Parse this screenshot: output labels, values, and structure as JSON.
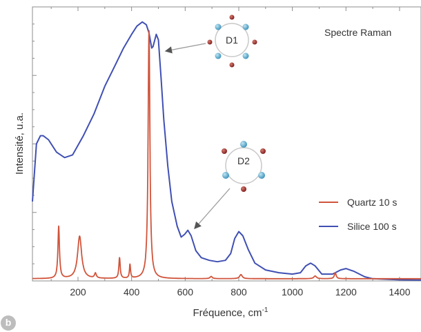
{
  "chart_data": {
    "type": "line",
    "title": "Spectre Raman",
    "xlabel": "Fréquence, cm",
    "xlabel_superscript": "-1",
    "ylabel": "Intensité, u.a.",
    "xlim": [
      30,
      1480
    ],
    "ylim": [
      0,
      1
    ],
    "x_ticks": [
      200,
      400,
      600,
      800,
      1000,
      1200,
      1400
    ],
    "x_tick_labels": [
      "200",
      "400",
      "600",
      "800",
      "1000",
      "1200",
      "1400"
    ],
    "y_ticks_shown": false,
    "grid": false,
    "legend_position": "right",
    "series": [
      {
        "name": "Quartz 10 s",
        "color": "#d0533a",
        "baseline": 0.008,
        "peaks": [
          {
            "x": 128,
            "height": 0.19,
            "width": 3.5
          },
          {
            "x": 206,
            "height": 0.155,
            "width": 9
          },
          {
            "x": 265,
            "height": 0.018,
            "width": 4
          },
          {
            "x": 355,
            "height": 0.075,
            "width": 3
          },
          {
            "x": 394,
            "height": 0.05,
            "width": 2.5
          },
          {
            "x": 465,
            "height": 0.905,
            "width": 4
          },
          {
            "x": 697,
            "height": 0.008,
            "width": 5
          },
          {
            "x": 808,
            "height": 0.015,
            "width": 6
          },
          {
            "x": 1085,
            "height": 0.01,
            "width": 6
          },
          {
            "x": 1160,
            "height": 0.022,
            "width": 4
          }
        ]
      },
      {
        "name": "Silice 100 s",
        "color": "#3f4fb3",
        "points": [
          [
            30,
            0.29
          ],
          [
            45,
            0.5
          ],
          [
            60,
            0.53
          ],
          [
            70,
            0.53
          ],
          [
            90,
            0.515
          ],
          [
            120,
            0.47
          ],
          [
            150,
            0.45
          ],
          [
            180,
            0.46
          ],
          [
            220,
            0.53
          ],
          [
            260,
            0.61
          ],
          [
            300,
            0.71
          ],
          [
            340,
            0.79
          ],
          [
            370,
            0.85
          ],
          [
            400,
            0.9
          ],
          [
            420,
            0.93
          ],
          [
            440,
            0.945
          ],
          [
            455,
            0.935
          ],
          [
            465,
            0.905
          ],
          [
            475,
            0.85
          ],
          [
            480,
            0.855
          ],
          [
            492,
            0.9
          ],
          [
            500,
            0.88
          ],
          [
            510,
            0.74
          ],
          [
            520,
            0.59
          ],
          [
            535,
            0.42
          ],
          [
            550,
            0.29
          ],
          [
            570,
            0.2
          ],
          [
            585,
            0.16
          ],
          [
            598,
            0.17
          ],
          [
            610,
            0.185
          ],
          [
            622,
            0.165
          ],
          [
            640,
            0.11
          ],
          [
            660,
            0.085
          ],
          [
            690,
            0.075
          ],
          [
            720,
            0.07
          ],
          [
            750,
            0.075
          ],
          [
            770,
            0.1
          ],
          [
            785,
            0.155
          ],
          [
            800,
            0.18
          ],
          [
            815,
            0.165
          ],
          [
            835,
            0.115
          ],
          [
            860,
            0.065
          ],
          [
            900,
            0.04
          ],
          [
            950,
            0.03
          ],
          [
            1000,
            0.025
          ],
          [
            1030,
            0.03
          ],
          [
            1050,
            0.055
          ],
          [
            1068,
            0.065
          ],
          [
            1085,
            0.055
          ],
          [
            1110,
            0.025
          ],
          [
            1150,
            0.025
          ],
          [
            1180,
            0.04
          ],
          [
            1200,
            0.045
          ],
          [
            1230,
            0.035
          ],
          [
            1270,
            0.015
          ],
          [
            1300,
            0.008
          ],
          [
            1400,
            0.004
          ],
          [
            1480,
            0.003
          ]
        ]
      }
    ],
    "annotations": [
      {
        "text": "D1",
        "label": "D1",
        "target_x": 490,
        "target_y": 0.88
      },
      {
        "text": "D2",
        "label": "D2",
        "target_x": 598,
        "target_y": 0.19
      }
    ]
  },
  "panel_label": "b",
  "colors": {
    "frame": "#8c8c8c",
    "text": "#333333",
    "arrow": "#9a9a9a",
    "atom_silicon": "#59a9cc",
    "atom_oxygen": "#9b2b2b",
    "bond": "#c8c8c8"
  }
}
